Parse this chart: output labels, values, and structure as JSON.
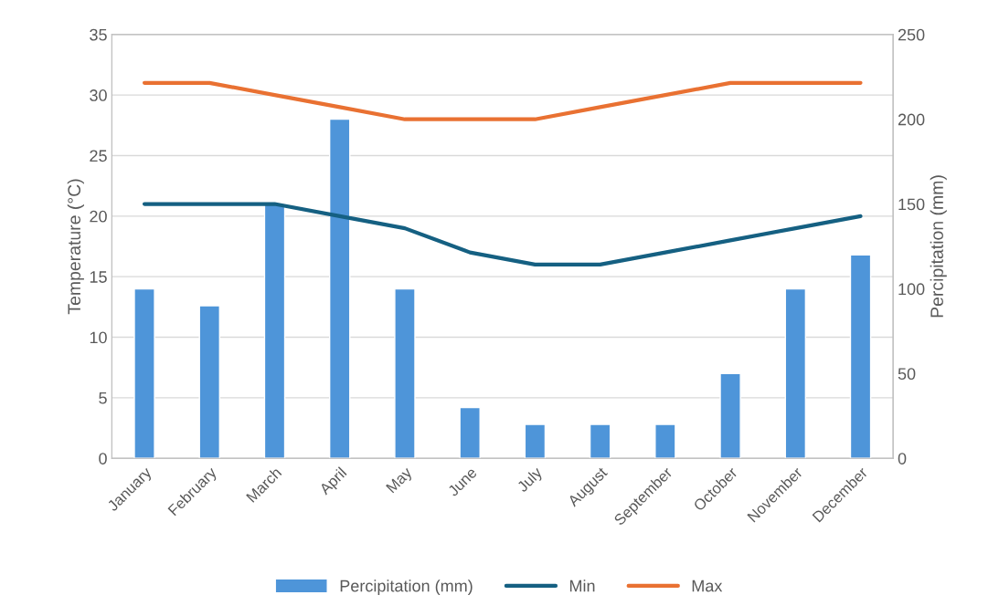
{
  "chart_data": {
    "type": "bar",
    "categories": [
      "January",
      "February",
      "March",
      "April",
      "May",
      "June",
      "July",
      "August",
      "September",
      "October",
      "November",
      "December"
    ],
    "ylabel": "Temperature (°C)",
    "y2label": "Percipitation (mm)",
    "ylim": [
      0,
      35
    ],
    "yticks": [
      0,
      5,
      10,
      15,
      20,
      25,
      30,
      35
    ],
    "y2lim": [
      0,
      250
    ],
    "y2ticks": [
      0,
      50,
      100,
      150,
      200,
      250
    ],
    "grid": "y",
    "legend": "bottom",
    "series": [
      {
        "name": "Percipitation (mm)",
        "axis": "y2",
        "color": "#4e95d9",
        "values": [
          100,
          90,
          150,
          200,
          100,
          30,
          20,
          20,
          20,
          50,
          100,
          120
        ]
      },
      {
        "name": "Min",
        "type": "line",
        "color": "#156082",
        "values": [
          21,
          21,
          21,
          20,
          19,
          17,
          16,
          16,
          17,
          18,
          19,
          20
        ]
      },
      {
        "name": "Max",
        "type": "line",
        "color": "#e97132",
        "values": [
          31,
          31,
          30,
          29,
          28,
          28,
          28,
          29,
          30,
          31,
          31,
          31
        ]
      }
    ]
  }
}
